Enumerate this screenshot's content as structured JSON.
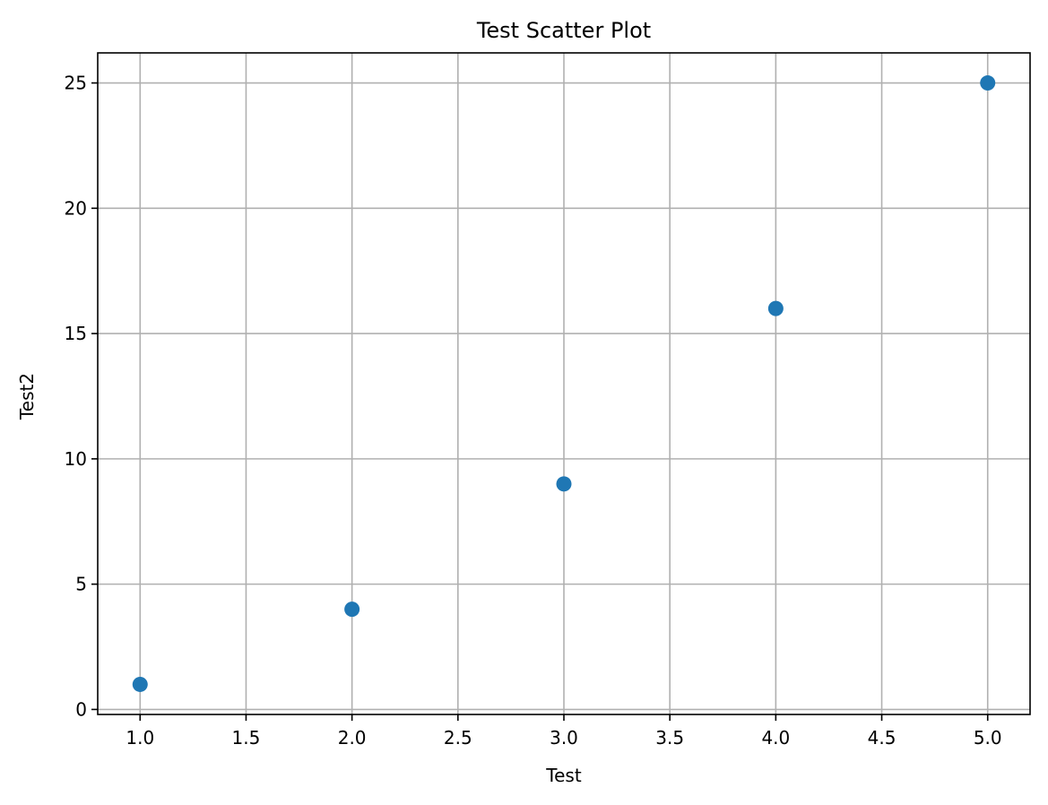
{
  "chart_data": {
    "type": "scatter",
    "title": "Test Scatter Plot",
    "xlabel": "Test",
    "ylabel": "Test2",
    "xlim": [
      0.8,
      5.2
    ],
    "ylim": [
      -0.2,
      26.2
    ],
    "x_ticks": [
      1.0,
      1.5,
      2.0,
      2.5,
      3.0,
      3.5,
      4.0,
      4.5,
      5.0
    ],
    "x_tick_labels": [
      "1.0",
      "1.5",
      "2.0",
      "2.5",
      "3.0",
      "3.5",
      "4.0",
      "4.5",
      "5.0"
    ],
    "y_ticks": [
      0,
      5,
      10,
      15,
      20,
      25
    ],
    "y_tick_labels": [
      "0",
      "5",
      "10",
      "15",
      "20",
      "25"
    ],
    "grid": true,
    "series": [
      {
        "color": "#1f77b4",
        "points": [
          {
            "x": 1,
            "y": 1
          },
          {
            "x": 2,
            "y": 4
          },
          {
            "x": 3,
            "y": 9
          },
          {
            "x": 4,
            "y": 16
          },
          {
            "x": 5,
            "y": 25
          }
        ]
      }
    ]
  }
}
